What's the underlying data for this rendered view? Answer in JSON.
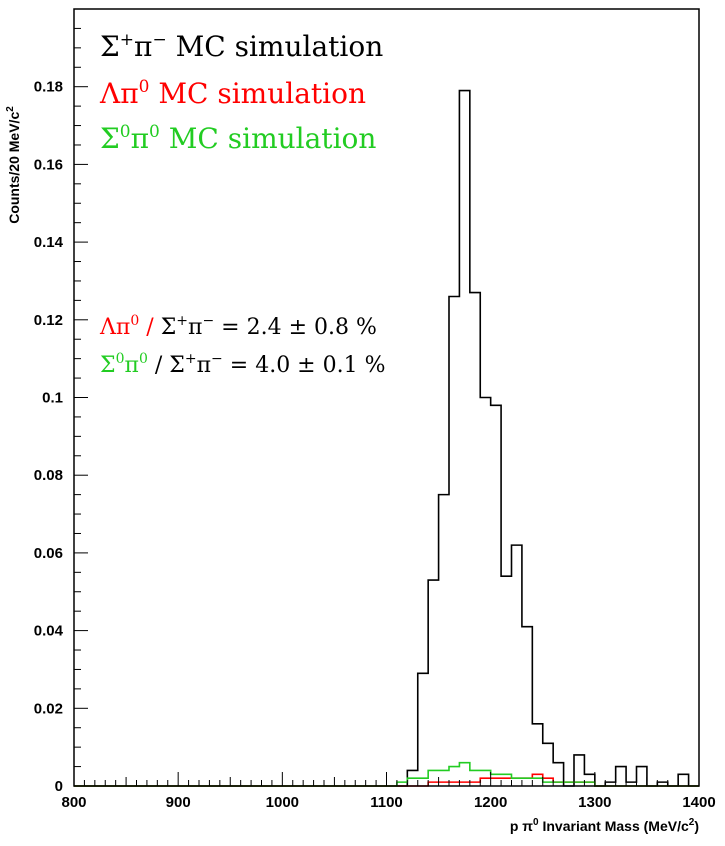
{
  "chart_data": {
    "type": "histogram",
    "title": "",
    "xlabel": {
      "prefix": "p π",
      "sup": "0",
      "mid": " Invariant Mass (MeV/c",
      "sup2": "2",
      "suffix": ")"
    },
    "ylabel": {
      "text": "Counts/20 MeV/c",
      "sup": "2"
    },
    "xlim": [
      800,
      1400
    ],
    "ylim": [
      0,
      0.2
    ],
    "xticks": [
      "800",
      "900",
      "1000",
      "1100",
      "1200",
      "1300",
      "1400"
    ],
    "yticks": [
      "0",
      "0.02",
      "0.04",
      "0.06",
      "0.08",
      "0.1",
      "0.12",
      "0.14",
      "0.16",
      "0.18"
    ],
    "xtick_values": [
      800,
      900,
      1000,
      1100,
      1200,
      1300,
      1400
    ],
    "ytick_values": [
      0,
      0.02,
      0.04,
      0.06,
      0.08,
      0.1,
      0.12,
      0.14,
      0.16,
      0.18
    ],
    "series": [
      {
        "name": "Σ⁺π⁻ MC simulation",
        "color": "#000000",
        "bins_from": 1100,
        "bin_width": 10,
        "values": [
          0,
          0,
          0.004,
          0.029,
          0.053,
          0.075,
          0.126,
          0.179,
          0.127,
          0.1,
          0.098,
          0.054,
          0.062,
          0.041,
          0.016,
          0.011,
          0.006,
          0,
          0.008,
          0.003,
          0,
          0.001,
          0.005,
          0.001,
          0.005,
          0,
          0.001,
          0,
          0.003,
          0
        ]
      },
      {
        "name": "Λπ⁰ MC simulation",
        "color": "#ff0000",
        "bins_from": 1100,
        "bin_width": 10,
        "values": [
          0,
          0,
          0,
          0,
          0.001,
          0.001,
          0.001,
          0.001,
          0.001,
          0.002,
          0.002,
          0.002,
          0.002,
          0.002,
          0.003,
          0.002,
          0.001,
          0.001,
          0.001,
          0.001,
          0,
          0,
          0,
          0,
          0,
          0,
          0,
          0,
          0,
          0
        ]
      },
      {
        "name": "Σ⁰π⁰ MC simulation",
        "color": "#22cc22",
        "bins_from": 1100,
        "bin_width": 10,
        "values": [
          0,
          0.001,
          0.002,
          0.002,
          0.004,
          0.004,
          0.005,
          0.006,
          0.004,
          0.004,
          0.003,
          0.003,
          0.002,
          0.002,
          0.002,
          0.001,
          0.001,
          0.001,
          0.001,
          0.001,
          0,
          0,
          0,
          0,
          0,
          0,
          0,
          0,
          0,
          0
        ]
      }
    ],
    "legend": {
      "placement": "top-left",
      "entries": [
        {
          "symbol": "Σ",
          "sup": "+",
          "mid": "π",
          "sup2": "−",
          "rest": " MC simulation",
          "color": "#000000"
        },
        {
          "symbol": "Λπ",
          "sup": "0",
          "mid": "",
          "sup2": "",
          "rest": "  MC simulation",
          "color": "#ff0000"
        },
        {
          "symbol": "Σ",
          "sup": "0",
          "mid": "π",
          "sup2": "0",
          "rest": " MC simulation",
          "color": "#22cc22"
        }
      ]
    },
    "annotations": [
      {
        "num": {
          "base": "Λπ",
          "sup": "0",
          "color": "#ff0000"
        },
        "slash": " / ",
        "slash_color": "#ff0000",
        "den": {
          "base": "Σ",
          "sup": "+",
          "base2": "π",
          "sup2": "−"
        },
        "value": " = 2.4 ± 0.8 %"
      },
      {
        "num": {
          "base": "Σ",
          "sup": "0",
          "base2": "π",
          "sup2": "0",
          "color": "#22cc22"
        },
        "slash": " / ",
        "slash_color": "#000000",
        "den": {
          "base": "Σ",
          "sup": "+",
          "base2": "π",
          "sup2": "−"
        },
        "value": " = 4.0 ± 0.1 %"
      }
    ],
    "grid": false
  }
}
